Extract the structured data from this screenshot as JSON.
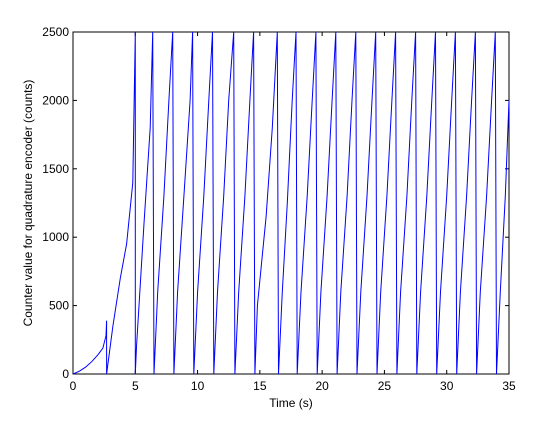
{
  "chart_data": {
    "type": "line",
    "title": "",
    "xlabel": "Time (s)",
    "ylabel": "Counter value for quadrature encoder (counts)",
    "xlim": [
      0,
      35
    ],
    "ylim": [
      0,
      2500
    ],
    "xticks": [
      0,
      5,
      10,
      15,
      20,
      25,
      30,
      35
    ],
    "yticks": [
      0,
      500,
      1000,
      1500,
      2000,
      2500
    ],
    "grid": false,
    "legend": "none",
    "series": [
      {
        "color": "#0000ff",
        "points": [
          [
            0.0,
            0
          ],
          [
            0.5,
            20
          ],
          [
            1.0,
            50
          ],
          [
            1.5,
            90
          ],
          [
            2.0,
            140
          ],
          [
            2.4,
            190
          ],
          [
            2.65,
            280
          ],
          [
            2.7,
            390
          ],
          [
            2.7,
            0
          ],
          [
            3.2,
            350
          ],
          [
            3.8,
            700
          ],
          [
            4.3,
            950
          ],
          [
            4.8,
            1400
          ],
          [
            5.0,
            2500
          ],
          [
            5.0,
            0
          ],
          [
            5.1,
            200
          ],
          [
            5.7,
            1100
          ],
          [
            6.2,
            1800
          ],
          [
            6.4,
            2500
          ],
          [
            6.5,
            0
          ],
          [
            6.8,
            600
          ],
          [
            7.3,
            1300
          ],
          [
            7.7,
            2000
          ],
          [
            8.0,
            2500
          ],
          [
            8.1,
            0
          ],
          [
            8.4,
            600
          ],
          [
            8.9,
            1300
          ],
          [
            9.4,
            2000
          ],
          [
            9.6,
            2500
          ],
          [
            9.7,
            0
          ],
          [
            10.0,
            600
          ],
          [
            10.5,
            1300
          ],
          [
            10.9,
            2000
          ],
          [
            11.2,
            2500
          ],
          [
            11.3,
            0
          ],
          [
            11.6,
            600
          ],
          [
            12.1,
            1300
          ],
          [
            12.5,
            2000
          ],
          [
            12.9,
            2500
          ],
          [
            13.0,
            0
          ],
          [
            13.3,
            600
          ],
          [
            13.8,
            1300
          ],
          [
            14.2,
            2000
          ],
          [
            14.5,
            2500
          ],
          [
            14.6,
            0
          ],
          [
            14.8,
            500
          ],
          [
            15.5,
            1150
          ],
          [
            16.0,
            1800
          ],
          [
            16.4,
            2500
          ],
          [
            16.5,
            0
          ],
          [
            16.8,
            600
          ],
          [
            17.2,
            1250
          ],
          [
            17.6,
            2000
          ],
          [
            17.9,
            2500
          ],
          [
            18.0,
            0
          ],
          [
            18.3,
            600
          ],
          [
            18.8,
            1300
          ],
          [
            19.2,
            2000
          ],
          [
            19.5,
            2500
          ],
          [
            19.6,
            0
          ],
          [
            19.9,
            600
          ],
          [
            20.4,
            1300
          ],
          [
            20.8,
            2000
          ],
          [
            21.1,
            2500
          ],
          [
            21.2,
            0
          ],
          [
            21.5,
            600
          ],
          [
            22.0,
            1300
          ],
          [
            22.4,
            2000
          ],
          [
            22.7,
            2500
          ],
          [
            22.8,
            0
          ],
          [
            23.1,
            600
          ],
          [
            23.6,
            1300
          ],
          [
            24.0,
            2000
          ],
          [
            24.3,
            2500
          ],
          [
            24.4,
            0
          ],
          [
            24.7,
            600
          ],
          [
            25.2,
            1300
          ],
          [
            25.6,
            2000
          ],
          [
            25.9,
            2500
          ],
          [
            26.0,
            0
          ],
          [
            26.3,
            600
          ],
          [
            26.8,
            1300
          ],
          [
            27.2,
            2000
          ],
          [
            27.5,
            2500
          ],
          [
            27.6,
            0
          ],
          [
            27.9,
            600
          ],
          [
            28.4,
            1300
          ],
          [
            28.8,
            2000
          ],
          [
            29.1,
            2500
          ],
          [
            29.2,
            0
          ],
          [
            29.5,
            600
          ],
          [
            30.0,
            1300
          ],
          [
            30.4,
            2000
          ],
          [
            30.7,
            2500
          ],
          [
            30.8,
            0
          ],
          [
            31.1,
            600
          ],
          [
            31.6,
            1300
          ],
          [
            32.0,
            2000
          ],
          [
            32.3,
            2500
          ],
          [
            32.4,
            0
          ],
          [
            32.7,
            600
          ],
          [
            33.2,
            1300
          ],
          [
            33.6,
            2000
          ],
          [
            33.9,
            2500
          ],
          [
            34.0,
            0
          ],
          [
            34.3,
            600
          ],
          [
            34.7,
            1300
          ],
          [
            35.0,
            2000
          ]
        ]
      }
    ]
  }
}
